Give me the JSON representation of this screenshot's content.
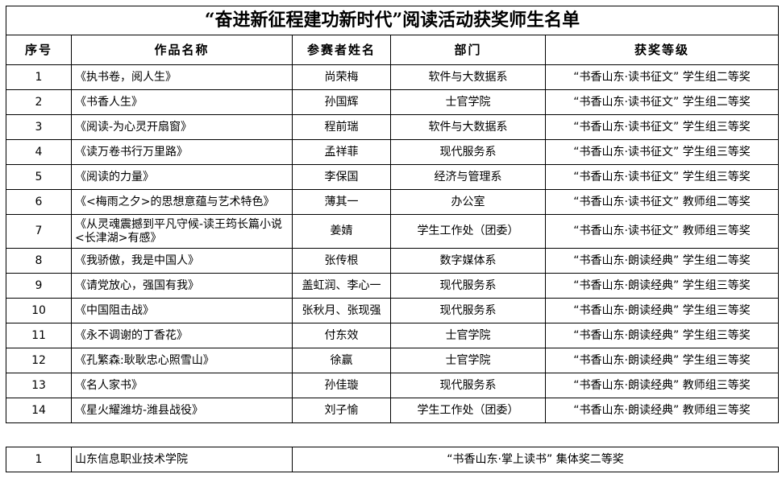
{
  "title": "“奋进新征程建功新时代”阅读活动获奖师生名单",
  "headers": [
    "序号",
    "作品名称",
    "参赛者姓名",
    "部门",
    "获奖等级"
  ],
  "rows": [
    {
      "no": "1",
      "work": "《执书卷，阅人生》",
      "name": "尚荣梅",
      "dept": "软件与大数据系",
      "award": "“书香山东·读书征文” 学生组二等奖"
    },
    {
      "no": "2",
      "work": "《书香人生》",
      "name": "孙国辉",
      "dept": "士官学院",
      "award": "“书香山东·读书征文” 学生组二等奖"
    },
    {
      "no": "3",
      "work": "《阅读-为心灵开扇窗》",
      "name": "程前瑞",
      "dept": "软件与大数据系",
      "award": "“书香山东·读书征文” 学生组三等奖"
    },
    {
      "no": "4",
      "work": "《读万卷书行万里路》",
      "name": "孟祥菲",
      "dept": "现代服务系",
      "award": "“书香山东·读书征文” 学生组三等奖"
    },
    {
      "no": "5",
      "work": "《阅读的力量》",
      "name": "李保国",
      "dept": "经济与管理系",
      "award": "“书香山东·读书征文” 学生组三等奖"
    },
    {
      "no": "6",
      "work": "《<梅雨之夕>的思想意蕴与艺术特色》",
      "name": "薄其一",
      "dept": "办公室",
      "award": "“书香山东·读书征文” 教师组二等奖"
    },
    {
      "no": "7",
      "work": "《从灵魂震撼到平凡守候-读王筠长篇小说<长津湖>有感》",
      "name": "姜婧",
      "dept": "学生工作处（团委）",
      "award": "“书香山东·读书征文” 教师组三等奖"
    },
    {
      "no": "8",
      "work": "《我骄傲，我是中国人》",
      "name": "张传根",
      "dept": "数字媒体系",
      "award": "“书香山东·朗读经典” 学生组二等奖"
    },
    {
      "no": "9",
      "work": "《请党放心，强国有我》",
      "name": "盖虹润、李心一",
      "dept": "现代服务系",
      "award": "“书香山东·朗读经典” 学生组三等奖"
    },
    {
      "no": "10",
      "work": "《中国阻击战》",
      "name": "张秋月、张现强",
      "dept": "现代服务系",
      "award": "“书香山东·朗读经典” 学生组三等奖"
    },
    {
      "no": "11",
      "work": "《永不调谢的丁香花》",
      "name": "付东效",
      "dept": "士官学院",
      "award": "“书香山东·朗读经典” 学生组三等奖"
    },
    {
      "no": "12",
      "work": "《孔繁森:耿耿忠心照雪山》",
      "name": "徐赢",
      "dept": "士官学院",
      "award": "“书香山东·朗读经典” 学生组三等奖"
    },
    {
      "no": "13",
      "work": "《名人家书》",
      "name": "孙佳璇",
      "dept": "现代服务系",
      "award": "“书香山东·朗读经典” 教师组三等奖"
    },
    {
      "no": "14",
      "work": "《星火耀潍坊-潍县战役》",
      "name": "刘子愉",
      "dept": "学生工作处（团委）",
      "award": "“书香山东·朗读经典” 教师组三等奖"
    }
  ],
  "collective": {
    "no": "1",
    "org": "山东信息职业技术学院",
    "award": "“书香山东·掌上读书” 集体奖二等奖"
  }
}
